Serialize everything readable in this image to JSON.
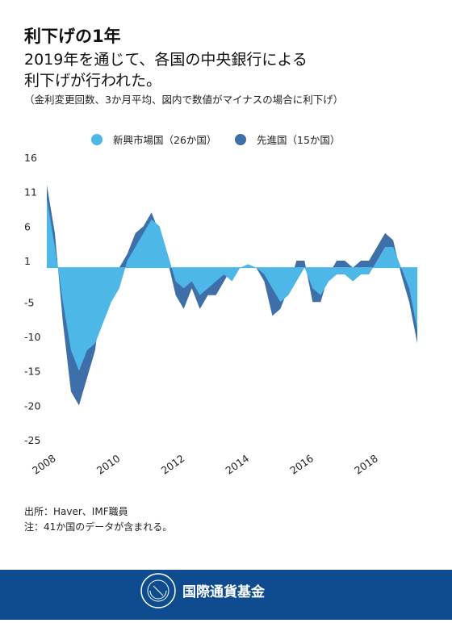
{
  "chart_data": {
    "type": "area",
    "title": "利下げの1年",
    "subtitle": [
      "2019年を通じて、各国の中央銀行による",
      "利下げが行われた。"
    ],
    "note": "（金利変更回数、3か月平均、図内で数値がマイナスの場合に利下げ）",
    "x": [
      2008.0,
      2008.25,
      2008.5,
      2008.75,
      2009.0,
      2009.25,
      2009.5,
      2009.75,
      2010.0,
      2010.25,
      2010.5,
      2010.75,
      2011.0,
      2011.25,
      2011.5,
      2011.75,
      2012.0,
      2012.25,
      2012.5,
      2012.75,
      2013.0,
      2013.25,
      2013.5,
      2013.75,
      2014.0,
      2014.25,
      2014.5,
      2014.75,
      2015.0,
      2015.25,
      2015.5,
      2015.75,
      2016.0,
      2016.25,
      2016.5,
      2016.75,
      2017.0,
      2017.25,
      2017.5,
      2017.75,
      2018.0,
      2018.25,
      2018.5,
      2018.75,
      2019.0,
      2019.25,
      2019.5
    ],
    "series": [
      {
        "name": "新興市場国（26か国）",
        "color": "#4db8e8",
        "values": [
          10,
          3,
          -5,
          -12,
          -15,
          -12,
          -11,
          -8,
          -5,
          -3,
          1,
          3,
          5,
          7,
          6,
          2,
          -2,
          -3,
          -2,
          -4,
          -3,
          -2,
          -1,
          -2,
          0,
          0.5,
          0,
          -1,
          -3,
          -5,
          -4,
          -2,
          0,
          -3,
          -4,
          -2,
          -1,
          -1,
          -2,
          -1,
          -1,
          1,
          3,
          3,
          0,
          -3,
          -9
        ]
      },
      {
        "name": "先進国（15か国）",
        "color": "#3f6fa8",
        "values": [
          12,
          5,
          -8,
          -18,
          -20,
          -16,
          -12,
          -3,
          0,
          0,
          2,
          5,
          6,
          8,
          5,
          1,
          -4,
          -6,
          -3,
          -6,
          -4,
          -4,
          -2,
          0,
          0,
          0,
          0,
          -2,
          -7,
          -6,
          -3,
          1,
          1,
          -5,
          -5,
          -1,
          1,
          1,
          0,
          1,
          1,
          3,
          5,
          4,
          -1,
          -5,
          -11
        ]
      }
    ],
    "xlim": [
      2008.0,
      2019.5
    ],
    "xticks": [
      2008,
      2010,
      2012,
      2014,
      2016,
      2018
    ],
    "ylim": [
      -25,
      16
    ],
    "yticks": [
      16,
      11,
      6,
      1,
      -5,
      -10,
      -15,
      -20,
      -25
    ],
    "source": "出所：Haver、IMF職員",
    "footnote": "注：41か国のデータが含まれる。",
    "footer": "国際通貨基金"
  }
}
